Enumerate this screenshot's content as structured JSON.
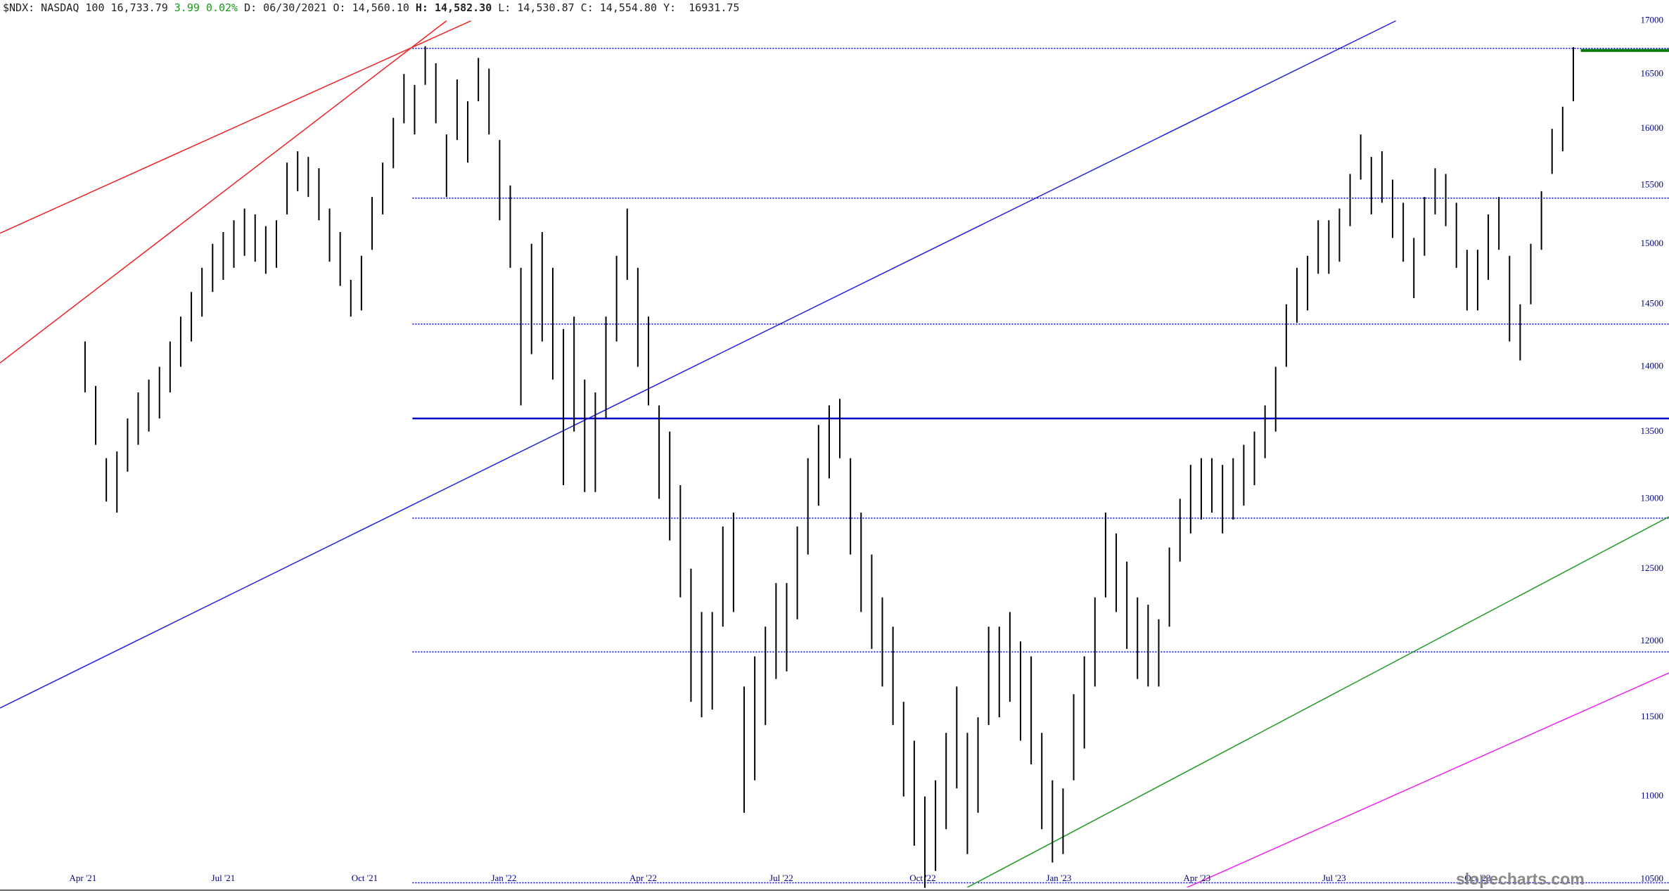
{
  "chart_data": {
    "type": "ohlc",
    "header": {
      "symbol": "$NDX: NASDAQ 100",
      "last": "16,733.79",
      "change": "3.99 0.02%",
      "open": "D: 06/30/2021 O: 14,560.10",
      "high": "H: 14,582.30",
      "rest": "L: 14,530.87 C: 14,554.80 Y:  16931.75"
    },
    "watermark": "slopecharts.com",
    "log_scale": true,
    "bar_color": "#000000",
    "high": [
      14200,
      13850,
      13300,
      13350,
      13600,
      13800,
      13900,
      14000,
      14200,
      14400,
      14600,
      14800,
      15000,
      15100,
      15200,
      15300,
      15250,
      15150,
      15200,
      15700,
      15800,
      15750,
      15650,
      15300,
      15100,
      14700,
      14900,
      15400,
      15700,
      16100,
      16500,
      16400,
      16760,
      16600,
      15950,
      16450,
      16250,
      16650,
      16550,
      15900,
      15500,
      14800,
      15000,
      15100,
      14800,
      14300,
      14400,
      13900,
      13800,
      14400,
      14900,
      15300,
      14800,
      14400,
      13700,
      13500,
      13100,
      12500,
      12200,
      12200,
      12800,
      12900,
      11700,
      11900,
      12100,
      12400,
      12400,
      12800,
      13300,
      13550,
      13700,
      13750,
      13300,
      12900,
      12600,
      12300,
      12100,
      11600,
      11350,
      11000,
      11100,
      11400,
      11700,
      11400,
      11500,
      12100,
      12100,
      12200,
      12000,
      11900,
      11400,
      11100,
      11050,
      11650,
      11900,
      12300,
      12900,
      12750,
      12550,
      12300,
      12250,
      12150,
      12650,
      13000,
      13250,
      13300,
      13300,
      13250,
      13300,
      13400,
      13500,
      13700,
      14000,
      14500,
      14800,
      14900,
      15200,
      15200,
      15300,
      15600,
      15950,
      15750,
      15800,
      15550,
      15350,
      15050,
      15400,
      15650,
      15600,
      15350,
      14950,
      14950,
      15250,
      15400,
      14900,
      14500,
      15000,
      15450,
      16000,
      16200,
      16750
    ],
    "low": [
      13800,
      13400,
      12980,
      12900,
      13200,
      13400,
      13500,
      13600,
      13800,
      14000,
      14200,
      14400,
      14600,
      14700,
      14800,
      14900,
      14850,
      14750,
      14800,
      15250,
      15450,
      15400,
      15200,
      14850,
      14650,
      14400,
      14450,
      14950,
      15250,
      15650,
      16050,
      15950,
      16400,
      16050,
      15400,
      15900,
      15700,
      16250,
      15950,
      15200,
      14800,
      13700,
      14100,
      14200,
      13900,
      13100,
      13500,
      13050,
      13050,
      13600,
      14200,
      14700,
      14000,
      13700,
      13000,
      12700,
      12300,
      11600,
      11500,
      11550,
      12100,
      12200,
      10900,
      11100,
      11450,
      11750,
      11800,
      12150,
      12600,
      12950,
      13150,
      13300,
      12600,
      12200,
      11950,
      11700,
      11450,
      11000,
      10700,
      10450,
      10550,
      10800,
      11050,
      10650,
      10900,
      11450,
      11500,
      11600,
      11350,
      11200,
      10800,
      10600,
      10650,
      11100,
      11300,
      11700,
      12300,
      12200,
      11950,
      11750,
      11700,
      11700,
      12100,
      12550,
      12750,
      12850,
      12900,
      12750,
      12850,
      12950,
      13100,
      13300,
      13500,
      14000,
      14350,
      14450,
      14750,
      14750,
      14850,
      15150,
      15550,
      15250,
      15350,
      15050,
      14850,
      14550,
      14900,
      15250,
      15150,
      14800,
      14450,
      14450,
      14700,
      14950,
      14200,
      14050,
      14500,
      14950,
      15600,
      15800,
      16250
    ],
    "xlim": [
      -8,
      149
    ],
    "xticks": [
      {
        "value": -0.2,
        "label": "Apr '21"
      },
      {
        "value": 13,
        "label": "Jul '21"
      },
      {
        "value": 26.3,
        "label": "Oct '21"
      },
      {
        "value": 39.4,
        "label": "Jan '22"
      },
      {
        "value": 52.5,
        "label": "Apr '22"
      },
      {
        "value": 65.5,
        "label": "Jul '22"
      },
      {
        "value": 78.8,
        "label": "Oct '22"
      },
      {
        "value": 91.6,
        "label": "Jan '23"
      },
      {
        "value": 104.6,
        "label": "Apr '23"
      },
      {
        "value": 117.5,
        "label": "Jul '23"
      },
      {
        "value": 131,
        "label": "Oct '23"
      }
    ],
    "ylim": [
      10420,
      17200
    ],
    "yticks": [
      10500,
      11000,
      11500,
      12000,
      12500,
      13000,
      13500,
      14000,
      14500,
      15000,
      15500,
      16000,
      16500,
      17000
    ],
    "levels": [
      {
        "value": 16740,
        "start": 30.8,
        "style": "dotted",
        "color": "#0000cc"
      },
      {
        "value": 15390,
        "start": 30.8,
        "style": "dotted",
        "color": "#0000cc"
      },
      {
        "value": 14340,
        "start": 30.8,
        "style": "dotted",
        "color": "#0000cc"
      },
      {
        "value": 12860,
        "start": 30.8,
        "style": "dotted",
        "color": "#0000cc"
      },
      {
        "value": 11930,
        "start": 30.8,
        "style": "dotted",
        "color": "#0000cc"
      },
      {
        "value": 10480,
        "start": 30.8,
        "style": "dotted",
        "color": "#0000cc"
      },
      {
        "value": 13600,
        "start": 30.8,
        "style": "solid",
        "color": "#0000cc"
      },
      {
        "value": 16720,
        "start": 140.7,
        "style": "thick",
        "color": "#007700"
      }
    ],
    "trendlines": [
      {
        "color": "#ee2222",
        "points": [
          [
            -8,
            15090
          ],
          [
            36.3,
            17000
          ]
        ]
      },
      {
        "color": "#ee2222",
        "points": [
          [
            -8,
            14030
          ],
          [
            34,
            17000
          ]
        ]
      },
      {
        "color": "#2222dd",
        "points": [
          [
            -8,
            11560
          ],
          [
            123.3,
            17000
          ]
        ]
      },
      {
        "color": "#229922",
        "points": [
          [
            82,
            10420
          ],
          [
            149,
            12870
          ]
        ]
      },
      {
        "color": "#ee22ee",
        "points": [
          [
            102.5,
            10420
          ],
          [
            149,
            11790
          ]
        ]
      }
    ]
  }
}
